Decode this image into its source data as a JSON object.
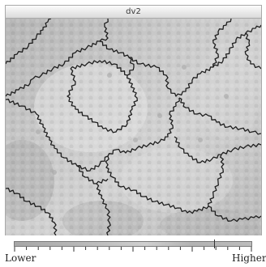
{
  "window": {
    "title": "dv2"
  },
  "legend": {
    "low_label": "Lower",
    "high_label": "Higher",
    "marker_fraction": 0.84
  },
  "colors": {
    "boundary": "#1e1e1e",
    "cell_light": "#d6d6d6",
    "cell_mid": "#bdbdbd",
    "cell_dark": "#a9a9a9"
  }
}
